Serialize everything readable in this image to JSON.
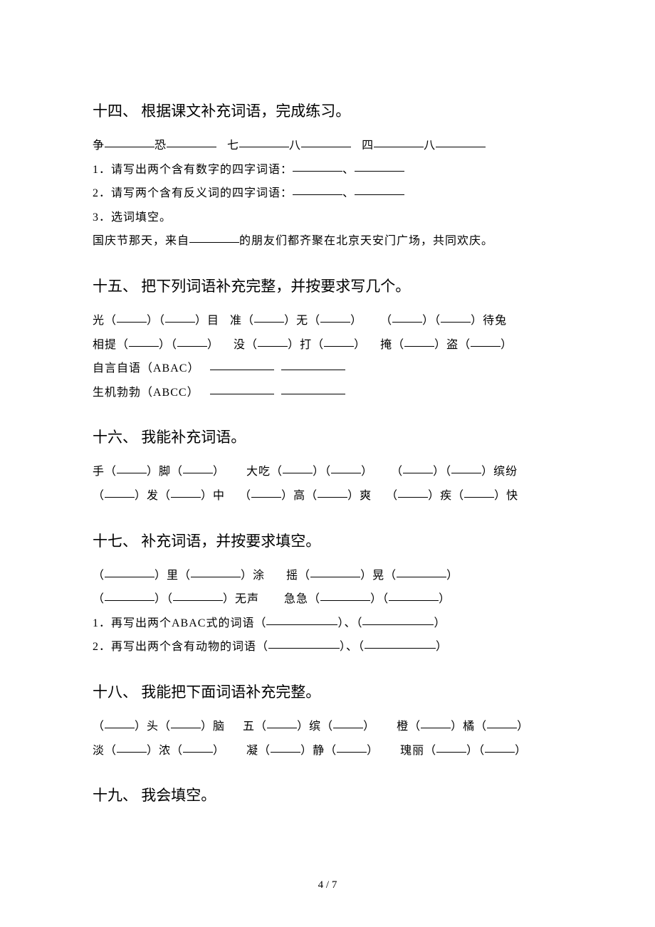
{
  "sections": {
    "s14": {
      "title": "十四、 根据课文补充词语，完成练习。",
      "line1_prefix1": "争",
      "line1_prefix2": "恐",
      "line1_prefix3": "七",
      "line1_prefix4": "八",
      "line1_prefix5": "四",
      "line1_prefix6": "八",
      "q1": "1．请写出两个含有数字的四字词语：",
      "sep1": "、",
      "q2": "2．请写两个含有反义词的四字词语：",
      "sep2": "、",
      "q3": "3．选词填空。",
      "q3_line_a": "国庆节那天，来自",
      "q3_line_b": "的朋友们都齐聚在北京天安门广场，共同欢庆。"
    },
    "s15": {
      "title": "十五、 把下列词语补充完整，并按要求写几个。",
      "r1_a": "光（",
      "r1_b": "）（",
      "r1_c": "）目",
      "r1_d": "准（",
      "r1_e": "）无（",
      "r1_f": "）",
      "r1_g": "（",
      "r1_h": "）（",
      "r1_i": "）待兔",
      "r2_a": "相提（",
      "r2_b": "）（",
      "r2_c": "）",
      "r2_d": "没（",
      "r2_e": "）打（",
      "r2_f": "）",
      "r2_g": "掩（",
      "r2_h": "）盗（",
      "r2_i": "）",
      "r3": "自言自语（ABAC）",
      "r4": "生机勃勃（ABCC）"
    },
    "s16": {
      "title": "十六、 我能补充词语。",
      "r1_a": "手（",
      "r1_b": "）脚（",
      "r1_c": "）",
      "r1_d": "大吃（",
      "r1_e": "）（",
      "r1_f": "）",
      "r1_g": "（",
      "r1_h": "）（",
      "r1_i": "）缤纷",
      "r2_a": "（",
      "r2_b": "）发（",
      "r2_c": "）中",
      "r2_d": "（",
      "r2_e": "）高（",
      "r2_f": "）爽",
      "r2_g": "（",
      "r2_h": "）疾（",
      "r2_i": "）快"
    },
    "s17": {
      "title": "十七、 补充词语，并按要求填空。",
      "r1_a": "（",
      "r1_b": "）里（",
      "r1_c": "）涂",
      "r1_d": "摇（",
      "r1_e": "）晃（",
      "r1_f": "）",
      "r2_a": "（",
      "r2_b": "）（",
      "r2_c": "）无声",
      "r2_d": "急急（",
      "r2_e": "）（",
      "r2_f": "）",
      "q1_a": "1．再写出两个ABAC式的词语（",
      "q1_b": "）、（",
      "q1_c": "）",
      "q2_a": "2．再写出两个含有动物的词语（",
      "q2_b": "）、（",
      "q2_c": "）"
    },
    "s18": {
      "title": "十八、 我能把下面词语补充完整。",
      "r1_a": "（",
      "r1_b": "）头（",
      "r1_c": "）脑",
      "r1_d": "五（",
      "r1_e": "）缤（",
      "r1_f": "）",
      "r1_g": "橙（",
      "r1_h": "）橘（",
      "r1_i": "）",
      "r2_a": "淡（",
      "r2_b": "）浓（",
      "r2_c": "）",
      "r2_d": "凝（",
      "r2_e": "）静（",
      "r2_f": "）",
      "r2_g": "瑰丽（",
      "r2_h": "）（",
      "r2_i": "）"
    },
    "s19": {
      "title": "十九、 我会填空。"
    }
  },
  "page_num": "4 / 7"
}
